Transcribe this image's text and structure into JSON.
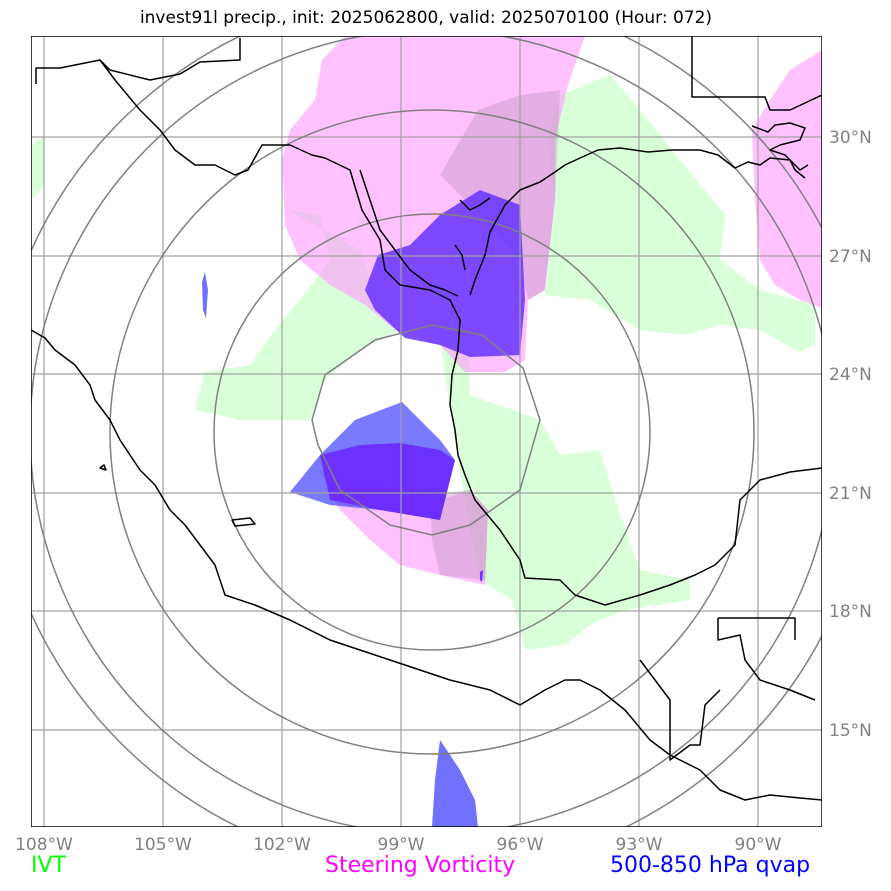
{
  "title": "invest91l precip., init: 2025062800, valid: 2025070100 (Hour: 072)",
  "lon_ticks": [
    "108°W",
    "105°W",
    "102°W",
    "99°W",
    "96°W",
    "93°W",
    "90°W"
  ],
  "lat_ticks": [
    "30°N",
    "27°N",
    "24°N",
    "21°N",
    "18°N",
    "15°N"
  ],
  "legend": {
    "ivt": {
      "label": "IVT",
      "color": "#00ff00"
    },
    "vort": {
      "label": "Steering Vorticity",
      "color": "#ff00ff"
    },
    "qvap": {
      "label": "500-850 hPa qvap",
      "color": "#0000ff"
    }
  },
  "map": {
    "extent_lon": [
      -108.4,
      -88.4
    ],
    "extent_lat": [
      12.5,
      32.5
    ],
    "ring_center_lon": -99.0,
    "ring_center_lat": 22.8,
    "ring_count": 5,
    "colors": {
      "grid": "#a0a0a0",
      "rings": "#808080",
      "ivt_fill": "#ccffcc",
      "vort_fill": "#ff99ff",
      "qvap_fill": "#4d4dff",
      "qvap_dark": "#6633ff",
      "coast": "#000000"
    }
  }
}
